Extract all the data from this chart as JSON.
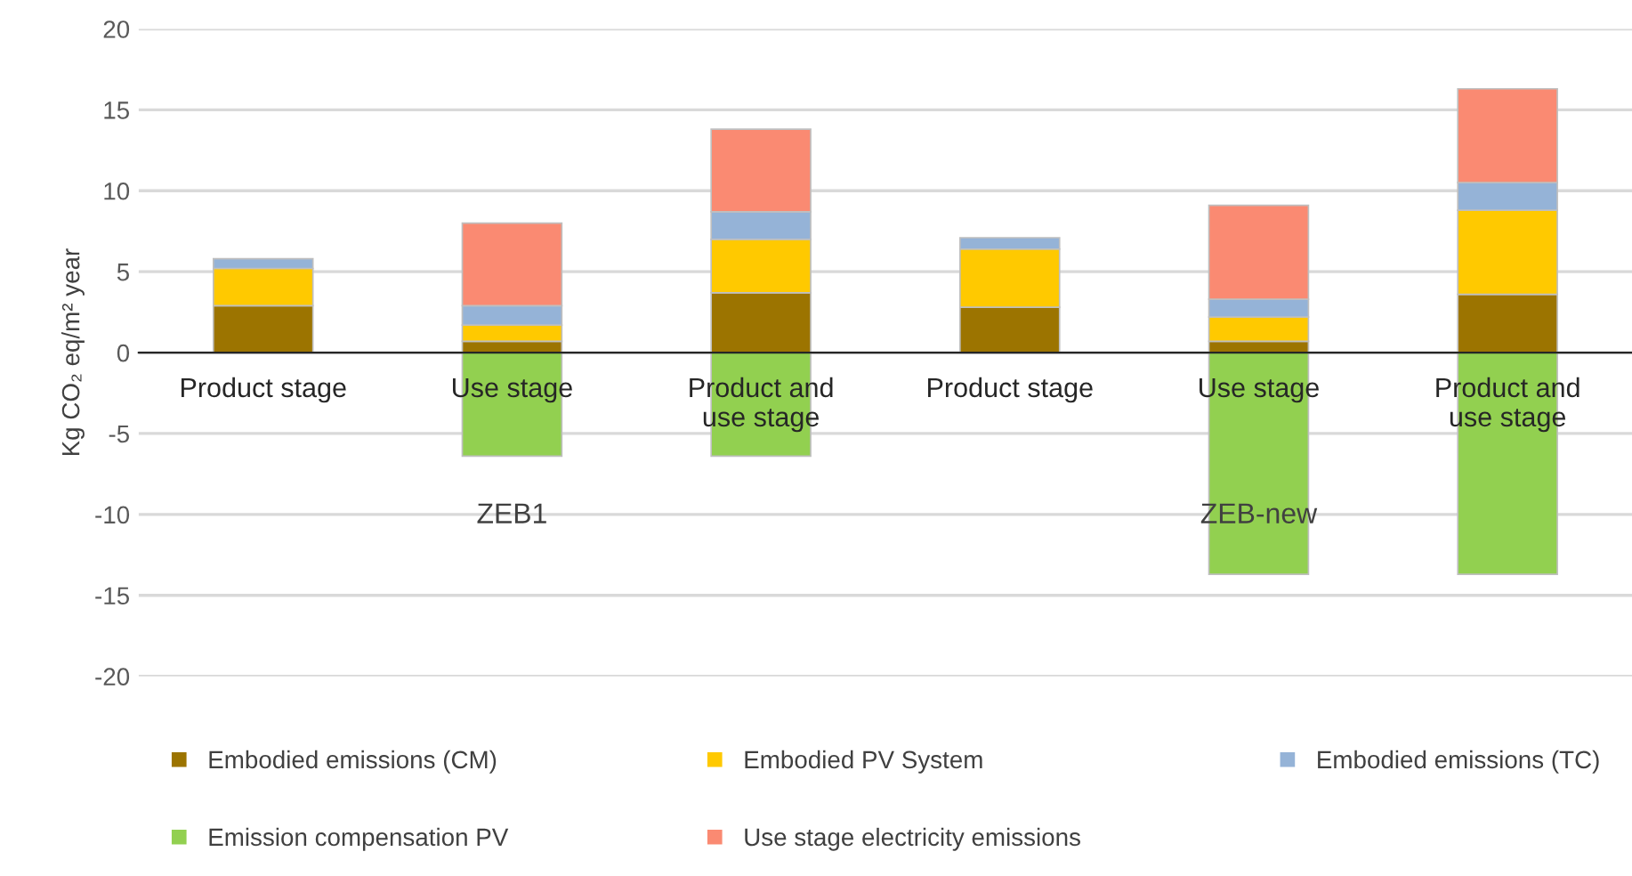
{
  "chart_data": {
    "type": "bar",
    "stacked": true,
    "ylabel": "Kg CO₂ eq/m² year",
    "categories": [
      "Product stage",
      "Use stage",
      "Product and use stage",
      "Product stage",
      "Use stage",
      "Product and use stage"
    ],
    "series": [
      {
        "name": "Embodied emissions (CM)",
        "color": "#9c7400",
        "values": [
          2.9,
          0.7,
          3.7,
          2.8,
          0.7,
          3.6
        ]
      },
      {
        "name": "Embodied PV System",
        "color": "#ffc900",
        "values": [
          2.3,
          1.0,
          3.3,
          3.6,
          1.5,
          5.2
        ]
      },
      {
        "name": "Embodied emissions (TC)",
        "color": "#95b3d7",
        "values": [
          0.6,
          1.2,
          1.7,
          0.7,
          1.1,
          1.7
        ]
      },
      {
        "name": "Emission compensation PV",
        "color": "#92d050",
        "values": [
          0,
          -6.4,
          -6.4,
          0,
          -13.7,
          -13.7
        ]
      },
      {
        "name": "Use stage electricity emissions",
        "color": "#fa8a72",
        "values": [
          0,
          5.1,
          5.1,
          0,
          5.8,
          5.8
        ]
      }
    ],
    "annotations": [
      "ZEB1",
      "ZEB-new"
    ],
    "ylim": [
      -20,
      20
    ],
    "yticks": [
      -20,
      -15,
      -10,
      -5,
      0,
      5,
      10,
      15,
      20
    ],
    "grid": "y",
    "legend": "bottom"
  }
}
